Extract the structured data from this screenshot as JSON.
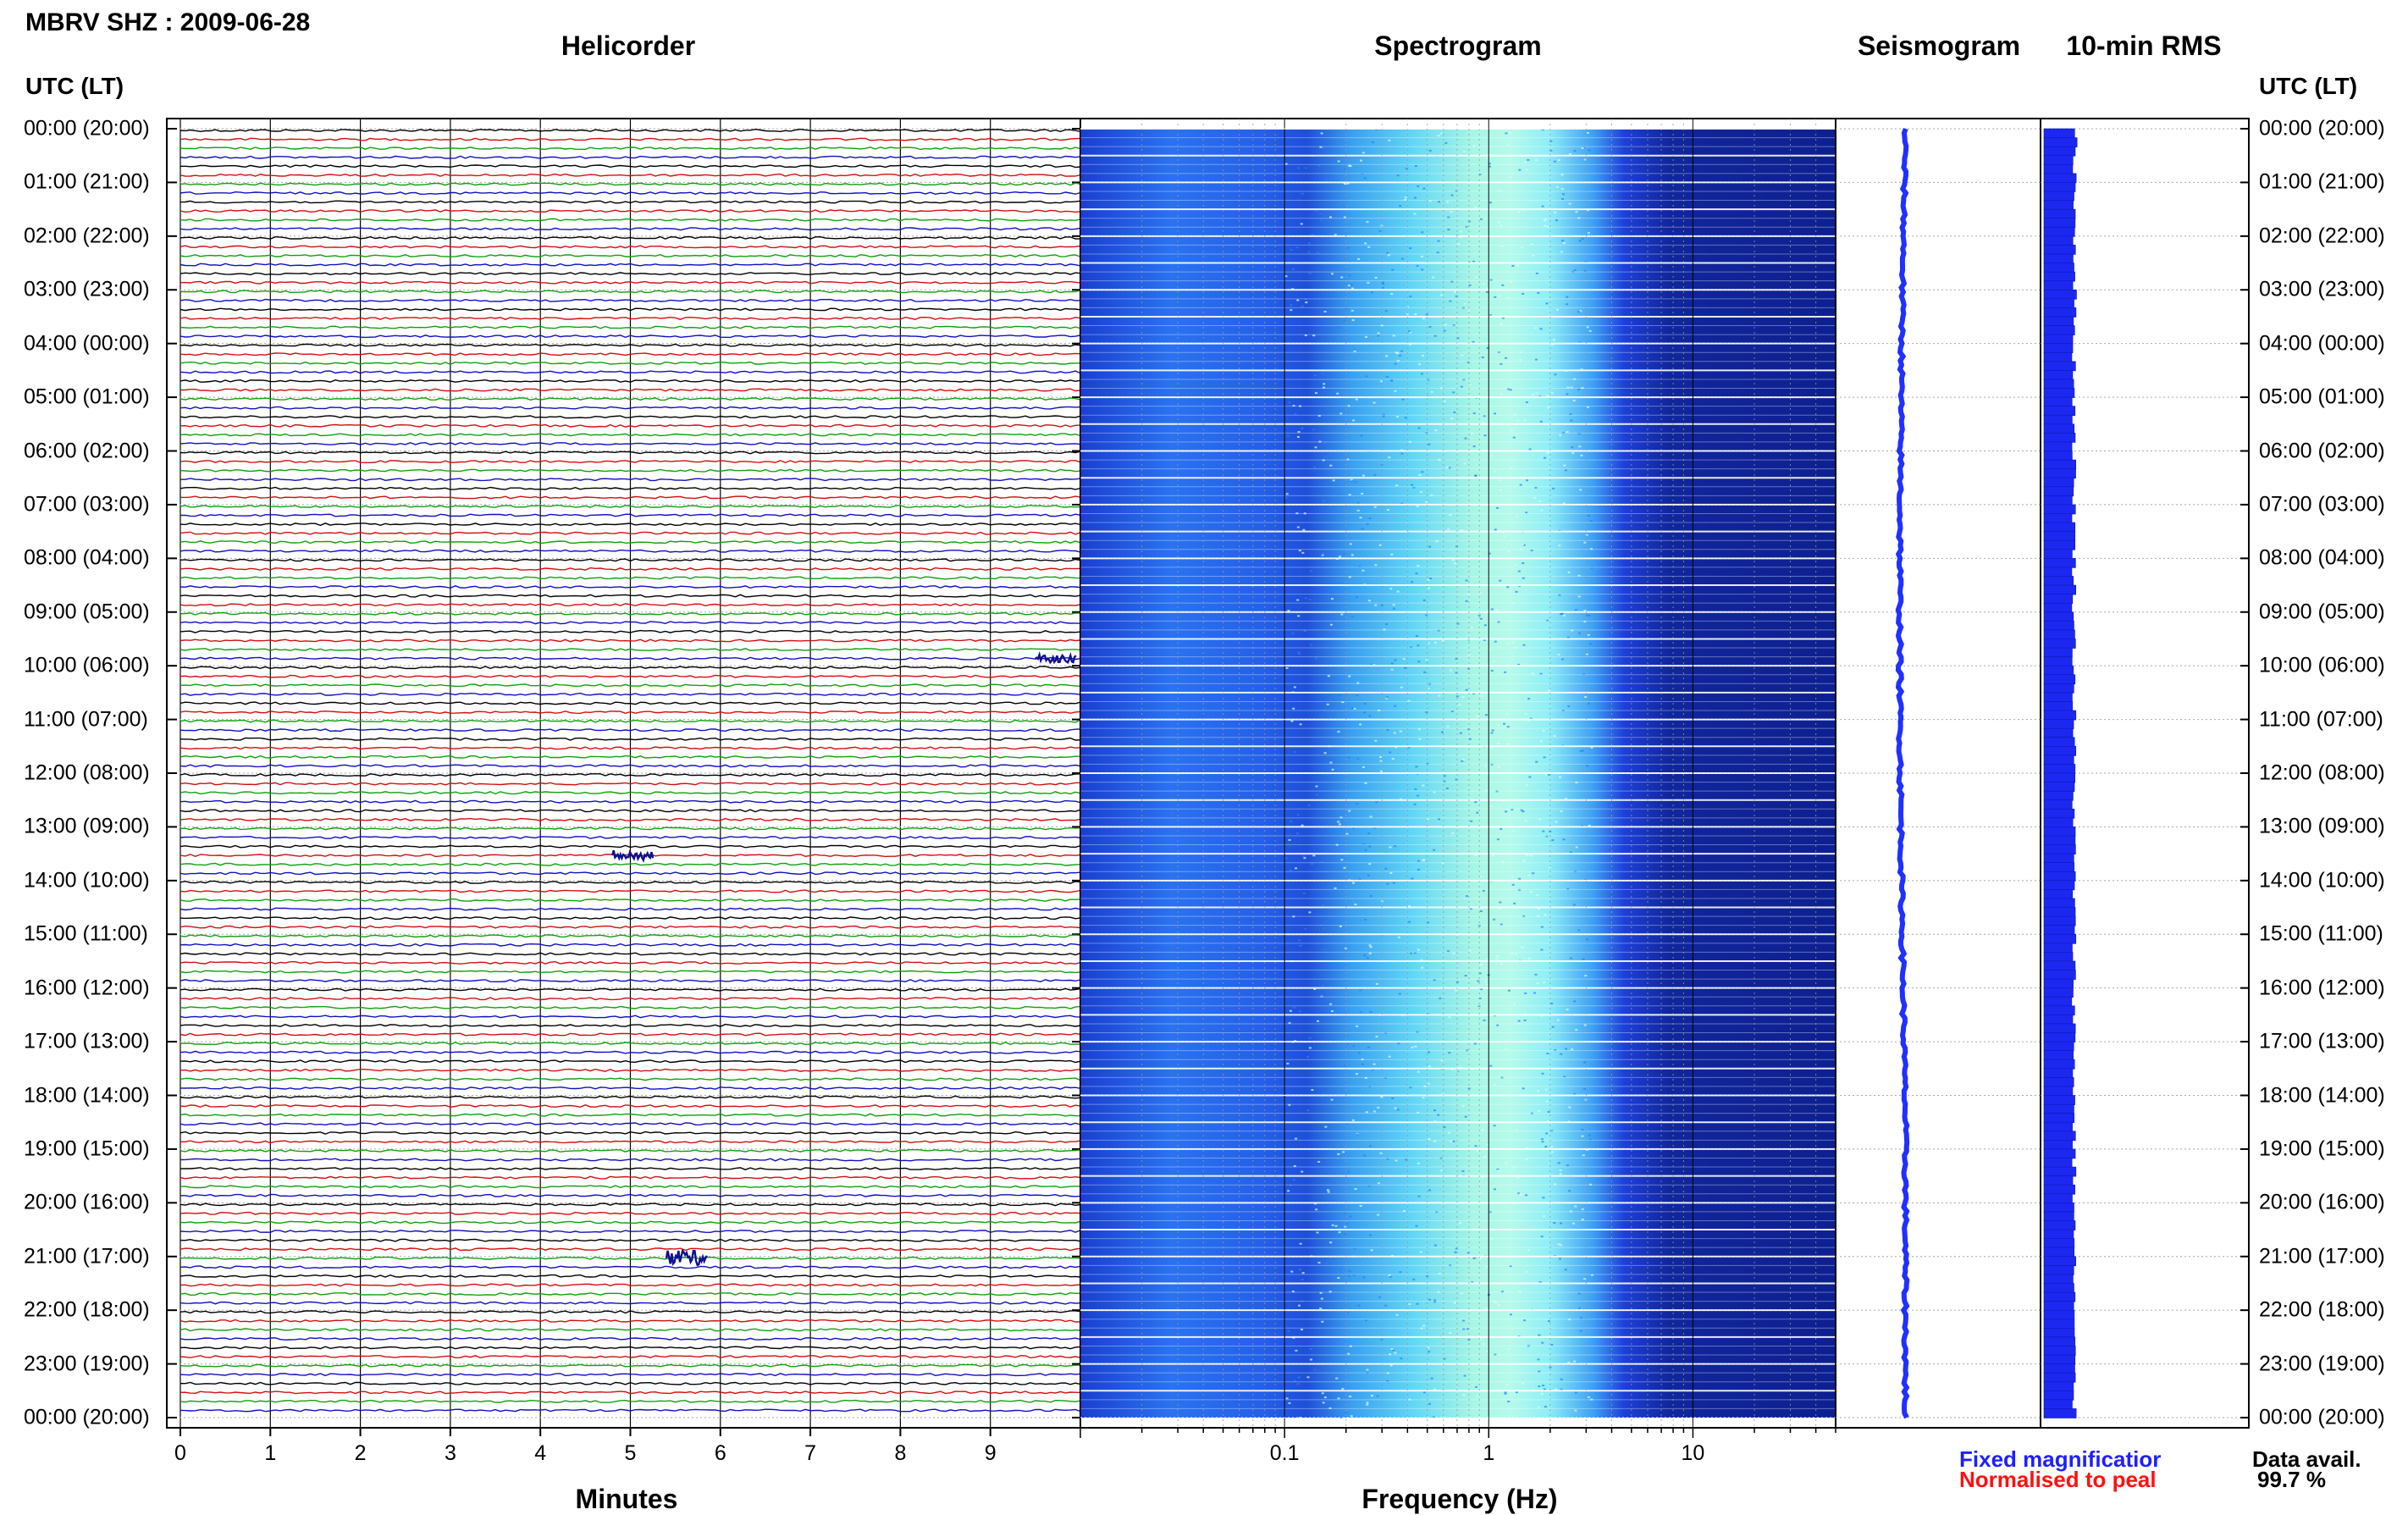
{
  "header": {
    "station_title": "MBRV SHZ : 2009-06-28",
    "utc_head_left": "UTC (LT)",
    "utc_head_right": "UTC (LT)"
  },
  "panels": {
    "helicorder": "Helicorder",
    "spectrogram": "Spectrogram",
    "seismogram": "Seismogram",
    "rms": "10-min RMS"
  },
  "legend": {
    "fixed": "Fixed magnificatior",
    "normalised": "Normalised to peal",
    "data_avail_label": "Data avail.",
    "data_avail_value": "99.7 %",
    "fixed_color": "#1f1fff",
    "normalised_color": "#ff1010"
  },
  "chart_data": [
    {
      "type": "line",
      "name": "helicorder",
      "title": "Helicorder",
      "xlabel": "Minutes",
      "x_ticks": [
        "0",
        "1",
        "2",
        "3",
        "4",
        "5",
        "6",
        "7",
        "8",
        "9"
      ],
      "xlim": [
        0,
        10
      ],
      "time_labels": [
        "00:00 (20:00)",
        "01:00 (21:00)",
        "02:00 (22:00)",
        "03:00 (23:00)",
        "04:00 (00:00)",
        "05:00 (01:00)",
        "06:00 (02:00)",
        "07:00 (03:00)",
        "08:00 (04:00)",
        "09:00 (05:00)",
        "10:00 (06:00)",
        "11:00 (07:00)",
        "12:00 (08:00)",
        "13:00 (09:00)",
        "14:00 (10:00)",
        "15:00 (11:00)",
        "16:00 (12:00)",
        "17:00 (13:00)",
        "18:00 (14:00)",
        "19:00 (15:00)",
        "20:00 (16:00)",
        "21:00 (17:00)",
        "22:00 (18:00)",
        "23:00 (19:00)",
        "00:00 (20:00)"
      ],
      "trace_colors": [
        "#000000",
        "#d01010",
        "#10a010",
        "#1010c0"
      ],
      "traces_per_hour": 6,
      "events": [
        {
          "time": "09:50",
          "minute": 9.7,
          "amplitude": 1.6
        },
        {
          "time": "13:30",
          "minute": 5.0,
          "amplitude": 2.0
        },
        {
          "time": "21:00",
          "minute": 5.6,
          "amplitude": 3.0
        }
      ]
    },
    {
      "type": "heatmap",
      "name": "spectrogram",
      "title": "Spectrogram",
      "xlabel": "Frequency (Hz)",
      "x_scale": "log",
      "xlim": [
        0.01,
        50
      ],
      "x_ticks": [
        "0.1",
        "1",
        "10"
      ],
      "peak_frequency_hz": 0.8,
      "rows": 144
    },
    {
      "type": "line",
      "name": "seismogram",
      "title": "Seismogram",
      "description_values": {
        "offset_start": 0.0,
        "offset_min": -0.3,
        "offset_end": 0.0
      }
    },
    {
      "type": "bar",
      "name": "rms",
      "title": "10-min RMS",
      "rows": 144,
      "level_range": [
        0.62,
        0.72
      ]
    }
  ]
}
